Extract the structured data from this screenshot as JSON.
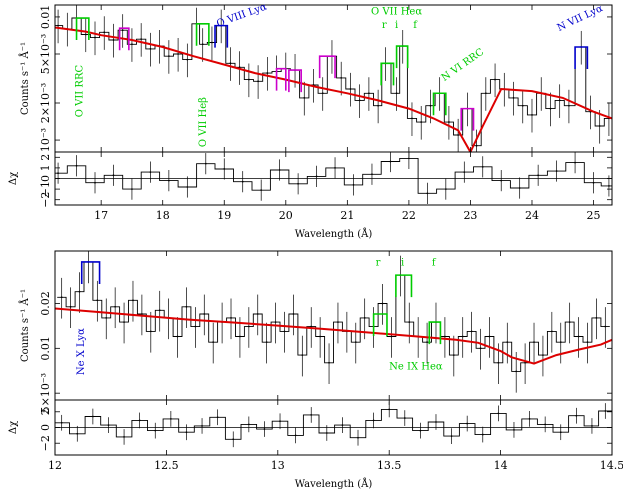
{
  "colors": {
    "data": "#000000",
    "model": "#dd0000",
    "green": "#00cc00",
    "blue": "#0000cc",
    "magenta": "#cc00cc"
  },
  "chart_data": [
    {
      "type": "line",
      "title": "",
      "xlabel": "Wavelength (Å)",
      "ylabel": "Counts s⁻¹ Å⁻¹",
      "scale": "log",
      "xlim": [
        16.25,
        25.3
      ],
      "ylim": [
        0.0008,
        0.0125
      ],
      "x_ticks": [
        17,
        18,
        19,
        20,
        21,
        22,
        23,
        24,
        25
      ],
      "x_tick_labels": [
        "17",
        "18",
        "19",
        "20",
        "21",
        "22",
        "23",
        "24",
        "25"
      ],
      "y_ticks": [
        0.001,
        0.002,
        0.005,
        0.01
      ],
      "y_tick_labels": [
        "10⁻³",
        "2×10⁻³",
        "5×10⁻³",
        "0.01"
      ],
      "series": [
        {
          "role": "data",
          "x": [
            16.3,
            16.45,
            16.6,
            16.75,
            16.9,
            17.05,
            17.2,
            17.35,
            17.5,
            17.65,
            17.8,
            17.95,
            18.1,
            18.25,
            18.4,
            18.55,
            18.65,
            18.8,
            18.95,
            19.1,
            19.25,
            19.4,
            19.55,
            19.7,
            19.85,
            20.0,
            20.15,
            20.3,
            20.45,
            20.6,
            20.75,
            20.9,
            21.05,
            21.2,
            21.35,
            21.5,
            21.62,
            21.8,
            21.9,
            22.05,
            22.2,
            22.35,
            22.5,
            22.65,
            22.8,
            22.95,
            23.1,
            23.25,
            23.4,
            23.55,
            23.7,
            23.85,
            24.0,
            24.15,
            24.3,
            24.45,
            24.6,
            24.8,
            24.95,
            25.1,
            25.25
          ],
          "y": [
            0.0085,
            0.008,
            0.0098,
            0.0072,
            0.0068,
            0.0075,
            0.0065,
            0.0078,
            0.006,
            0.0066,
            0.0055,
            0.0058,
            0.0048,
            0.005,
            0.0045,
            0.0088,
            0.006,
            0.0062,
            0.0085,
            0.0042,
            0.0039,
            0.0031,
            0.003,
            0.0035,
            0.0036,
            0.0038,
            0.0037,
            0.0022,
            0.0028,
            0.0024,
            0.0048,
            0.0032,
            0.0026,
            0.0021,
            0.0024,
            0.0019,
            0.0042,
            0.0024,
            0.0058,
            0.0015,
            0.0014,
            0.0019,
            0.0024,
            0.0014,
            0.0011,
            0.0018,
            0.0009,
            0.0024,
            0.0031,
            0.0026,
            0.0022,
            0.0019,
            0.0016,
            0.0024,
            0.0018,
            0.0021,
            0.0019,
            0.0057,
            0.0017,
            0.0013,
            0.0015
          ]
        },
        {
          "role": "model",
          "x": [
            16.25,
            16.75,
            17.0,
            17.5,
            18.0,
            18.5,
            19.0,
            19.5,
            20.0,
            20.5,
            21.0,
            21.5,
            22.0,
            22.4,
            22.8,
            23.0,
            23.2,
            23.5,
            24.0,
            24.5,
            25.0,
            25.3
          ],
          "y": [
            0.0082,
            0.0076,
            0.0071,
            0.0065,
            0.0057,
            0.0048,
            0.0041,
            0.0035,
            0.0031,
            0.0027,
            0.0024,
            0.0021,
            0.0018,
            0.0015,
            0.0012,
            0.0008,
            0.0013,
            0.0026,
            0.0025,
            0.0022,
            0.0017,
            0.0015
          ]
        }
      ],
      "features": [
        {
          "color": "green",
          "x": [
            16.6,
            16.8
          ],
          "y": [
            0.0098,
            0.0098
          ]
        },
        {
          "color": "magenta",
          "x": [
            17.3,
            17.45
          ],
          "y": [
            0.0081,
            0.0081
          ]
        },
        {
          "color": "green",
          "x": [
            18.55,
            18.75
          ],
          "y": [
            0.0088,
            0.0088
          ]
        },
        {
          "color": "blue",
          "x": [
            18.85,
            19.05
          ],
          "y": [
            0.0085,
            0.0085
          ]
        },
        {
          "color": "magenta",
          "x": [
            19.85,
            20.0
          ],
          "y": [
            0.0038,
            0.0038
          ]
        },
        {
          "color": "magenta",
          "x": [
            20.05,
            20.25
          ],
          "y": [
            0.0037,
            0.0037
          ]
        },
        {
          "color": "magenta",
          "x": [
            20.55,
            20.8
          ],
          "y": [
            0.0048,
            0.0048
          ]
        },
        {
          "color": "green",
          "x": [
            21.55,
            21.75
          ],
          "y": [
            0.0042,
            0.0042
          ]
        },
        {
          "color": "green",
          "x": [
            21.8,
            21.98
          ],
          "y": [
            0.0058,
            0.0058
          ]
        },
        {
          "color": "green",
          "x": [
            22.4,
            22.6
          ],
          "y": [
            0.0024,
            0.0024
          ]
        },
        {
          "color": "magenta",
          "x": [
            22.85,
            23.05
          ],
          "y": [
            0.0018,
            0.0018
          ]
        },
        {
          "color": "blue",
          "x": [
            24.7,
            24.9
          ],
          "y": [
            0.0057,
            0.0057
          ]
        }
      ],
      "annotations": [
        {
          "text": "O VII RRC",
          "color": "green",
          "x": 16.7,
          "y": 0.0025,
          "rotate": -90
        },
        {
          "text": "O VII Heβ",
          "color": "green",
          "x": 18.7,
          "y": 0.0014,
          "rotate": -90
        },
        {
          "text": "O VIII Lyα",
          "color": "blue",
          "x": 19.3,
          "y": 0.0098,
          "rotate": -20
        },
        {
          "text": "O VII Heα",
          "color": "green",
          "x": 21.8,
          "y": 0.0105,
          "rotate": 0
        },
        {
          "text": "r",
          "color": "green",
          "x": 21.6,
          "y": 0.0081,
          "rotate": 0
        },
        {
          "text": "i",
          "color": "green",
          "x": 21.8,
          "y": 0.0081,
          "rotate": 0
        },
        {
          "text": "f",
          "color": "green",
          "x": 22.1,
          "y": 0.0081,
          "rotate": 0
        },
        {
          "text": "N VI RRC",
          "color": "green",
          "x": 22.9,
          "y": 0.0039,
          "rotate": -35
        },
        {
          "text": "N VII Lyα",
          "color": "blue",
          "x": 24.8,
          "y": 0.0093,
          "rotate": -25
        }
      ]
    },
    {
      "type": "line",
      "title": "",
      "xlabel": "Wavelength (Å)",
      "ylabel": "Δχ",
      "xlim": [
        16.25,
        25.3
      ],
      "ylim": [
        -2.5,
        2.5
      ],
      "x_ticks": [
        17,
        18,
        19,
        20,
        21,
        22,
        23,
        24,
        25
      ],
      "x_tick_labels": [
        "17",
        "18",
        "19",
        "20",
        "21",
        "22",
        "23",
        "24",
        "25"
      ],
      "y_ticks": [
        -2,
        -1,
        0,
        1,
        2
      ],
      "y_tick_labels": [
        "−2",
        "−1",
        "0",
        "1",
        "2"
      ],
      "series": [
        {
          "role": "data",
          "x": [
            16.3,
            16.6,
            16.9,
            17.2,
            17.5,
            17.8,
            18.1,
            18.4,
            18.7,
            19.0,
            19.3,
            19.6,
            19.9,
            20.2,
            20.5,
            20.8,
            21.1,
            21.4,
            21.7,
            22.0,
            22.3,
            22.6,
            22.9,
            23.2,
            23.5,
            23.8,
            24.1,
            24.4,
            24.7,
            25.0,
            25.25
          ],
          "y": [
            0.5,
            1.2,
            -0.4,
            0.3,
            -1.0,
            0.6,
            -0.2,
            -0.8,
            1.4,
            0.9,
            -0.3,
            -1.1,
            0.8,
            -0.5,
            0.2,
            1.0,
            -0.6,
            0.4,
            1.6,
            1.9,
            -1.4,
            -1.0,
            0.6,
            1.1,
            -0.2,
            -0.9,
            0.3,
            0.7,
            1.5,
            -0.4,
            -0.7
          ]
        }
      ]
    },
    {
      "type": "line",
      "title": "",
      "xlabel": "Wavelength (Å)",
      "ylabel": "Counts s⁻¹ Å⁻¹",
      "scale": "log",
      "xlim": [
        12.0,
        14.5
      ],
      "ylim": [
        0.0045,
        0.045
      ],
      "x_ticks": [
        12,
        12.5,
        13,
        13.5,
        14,
        14.5
      ],
      "x_tick_labels": [
        "12",
        "12.5",
        "13",
        "13.5",
        "14",
        "14.5"
      ],
      "y_ticks": [
        0.005,
        0.01,
        0.02
      ],
      "y_tick_labels": [
        "5×10⁻³",
        "0.01",
        "0.02"
      ],
      "series": [
        {
          "role": "data",
          "x": [
            12.03,
            12.07,
            12.11,
            12.15,
            12.19,
            12.23,
            12.27,
            12.31,
            12.35,
            12.39,
            12.43,
            12.47,
            12.51,
            12.55,
            12.59,
            12.63,
            12.67,
            12.71,
            12.75,
            12.79,
            12.83,
            12.87,
            12.91,
            12.95,
            12.99,
            13.03,
            13.07,
            13.11,
            13.15,
            13.19,
            13.23,
            13.27,
            13.31,
            13.35,
            13.39,
            13.43,
            13.47,
            13.51,
            13.55,
            13.59,
            13.63,
            13.67,
            13.71,
            13.75,
            13.79,
            13.83,
            13.87,
            13.91,
            13.95,
            13.99,
            14.03,
            14.07,
            14.11,
            14.15,
            14.19,
            14.23,
            14.27,
            14.31,
            14.35,
            14.39,
            14.43,
            14.47
          ],
          "y": [
            0.022,
            0.019,
            0.024,
            0.038,
            0.021,
            0.016,
            0.019,
            0.015,
            0.021,
            0.017,
            0.013,
            0.018,
            0.016,
            0.012,
            0.019,
            0.014,
            0.017,
            0.011,
            0.015,
            0.016,
            0.012,
            0.014,
            0.017,
            0.011,
            0.015,
            0.013,
            0.017,
            0.009,
            0.014,
            0.012,
            0.008,
            0.015,
            0.013,
            0.011,
            0.016,
            0.014,
            0.02,
            0.012,
            0.031,
            0.015,
            0.012,
            0.011,
            0.015,
            0.012,
            0.009,
            0.012,
            0.013,
            0.01,
            0.012,
            0.008,
            0.011,
            0.007,
            0.008,
            0.011,
            0.009,
            0.013,
            0.011,
            0.015,
            0.012,
            0.011,
            0.016,
            0.014
          ]
        },
        {
          "role": "model",
          "x": [
            12.0,
            12.2,
            12.4,
            12.6,
            12.8,
            13.0,
            13.2,
            13.4,
            13.6,
            13.8,
            13.9,
            14.0,
            14.05,
            14.15,
            14.25,
            14.35,
            14.45,
            14.5
          ],
          "y": [
            0.0185,
            0.0175,
            0.0165,
            0.0156,
            0.0149,
            0.0142,
            0.0135,
            0.0128,
            0.0121,
            0.0114,
            0.0109,
            0.0096,
            0.0087,
            0.0079,
            0.009,
            0.0098,
            0.0106,
            0.0114
          ]
        }
      ],
      "features": [
        {
          "color": "blue",
          "x": [
            12.12,
            12.2
          ],
          "y": [
            0.038,
            0.038
          ]
        },
        {
          "color": "green",
          "x": [
            13.43,
            13.49
          ],
          "y": [
            0.017,
            0.017
          ]
        },
        {
          "color": "green",
          "x": [
            13.53,
            13.6
          ],
          "y": [
            0.031,
            0.031
          ]
        },
        {
          "color": "green",
          "x": [
            13.68,
            13.73
          ],
          "y": [
            0.015,
            0.015
          ]
        }
      ],
      "annotations": [
        {
          "text": "Ne X Lyα",
          "color": "blue",
          "x": 12.13,
          "y": 0.0095,
          "rotate": -90
        },
        {
          "text": "r",
          "color": "green",
          "x": 13.45,
          "y": 0.036,
          "rotate": 0
        },
        {
          "text": "i",
          "color": "green",
          "x": 13.56,
          "y": 0.036,
          "rotate": 0
        },
        {
          "text": "f",
          "color": "green",
          "x": 13.7,
          "y": 0.036,
          "rotate": 0
        },
        {
          "text": "Ne IX Heα",
          "color": "green",
          "x": 13.62,
          "y": 0.0072,
          "rotate": 0
        }
      ]
    },
    {
      "type": "line",
      "title": "",
      "xlabel": "Wavelength (Å)",
      "ylabel": "Δχ",
      "xlim": [
        12.0,
        14.5
      ],
      "ylim": [
        -3.5,
        3.5
      ],
      "x_ticks": [
        12,
        12.5,
        13,
        13.5,
        14,
        14.5
      ],
      "x_tick_labels": [
        "12",
        "12.5",
        "13",
        "13.5",
        "14",
        "14.5"
      ],
      "y_ticks": [
        -2,
        0,
        2
      ],
      "y_tick_labels": [
        "−2",
        "0",
        "2"
      ],
      "series": [
        {
          "role": "data",
          "x": [
            12.03,
            12.1,
            12.17,
            12.24,
            12.31,
            12.38,
            12.45,
            12.52,
            12.59,
            12.66,
            12.73,
            12.8,
            12.87,
            12.94,
            13.01,
            13.08,
            13.15,
            13.22,
            13.29,
            13.36,
            13.43,
            13.5,
            13.57,
            13.64,
            13.71,
            13.78,
            13.85,
            13.92,
            13.99,
            14.06,
            14.13,
            14.2,
            14.27,
            14.34,
            14.41,
            14.47
          ],
          "y": [
            0.6,
            -0.8,
            1.4,
            0.3,
            -1.2,
            0.9,
            -0.4,
            1.1,
            -0.6,
            0.2,
            1.3,
            -1.5,
            0.4,
            -0.2,
            0.8,
            -1.0,
            1.6,
            -0.7,
            0.3,
            -1.3,
            0.9,
            2.3,
            1.2,
            -0.4,
            0.7,
            -1.1,
            0.5,
            -0.9,
            1.8,
            -0.3,
            1.1,
            0.4,
            -0.6,
            1.5,
            0.2,
            2.1
          ]
        }
      ]
    }
  ]
}
